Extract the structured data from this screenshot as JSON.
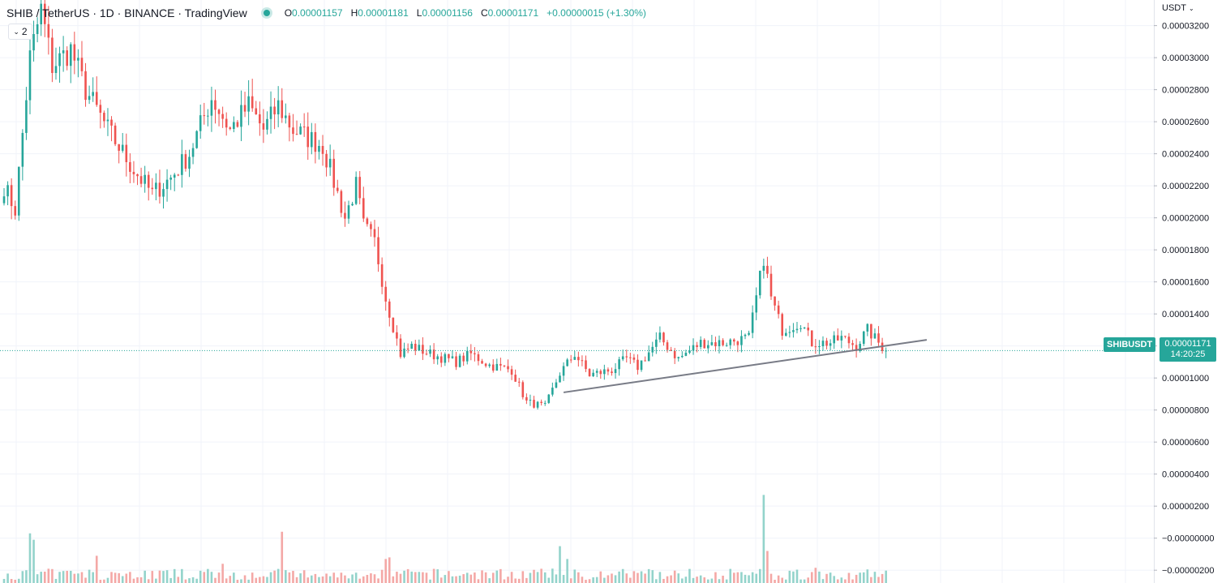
{
  "header": {
    "symbol": "SHIB / TetherUS · 1D · BINANCE · TradingView",
    "open_key": "O",
    "open": "0.00001157",
    "high_key": "H",
    "high": "0.00001181",
    "low_key": "L",
    "low": "0.00001156",
    "close_key": "C",
    "close": "0.00001171",
    "change": "+0.00000015 (+1.30%)",
    "collapse_count": "2"
  },
  "axis": {
    "currency": "USDT"
  },
  "price_tag": {
    "symbol": "SHIBUSDT",
    "price": "0.00001171",
    "countdown": "14:20:25"
  },
  "colors": {
    "up": "#26a69a",
    "down": "#ef5350",
    "up_vol": "#93d3cb",
    "down_vol": "#f4a8a6",
    "trendline": "#787b86",
    "grid": "#f0f3fa"
  },
  "chart_data": {
    "type": "candlestick",
    "symbol": "SHIB / TetherUS",
    "interval": "1D",
    "exchange": "BINANCE",
    "y_range": [
      -2.8e-06,
      3.36e-05
    ],
    "y_ticks": [
      "0.00003200",
      "0.00003000",
      "0.00002800",
      "0.00002600",
      "0.00002400",
      "0.00002200",
      "0.00002000",
      "0.00001800",
      "0.00001600",
      "0.00001400",
      "0.00001200",
      "0.00001000",
      "0.00000800",
      "0.00000600",
      "0.00000400",
      "0.00000200",
      "−0.00000000",
      "−0.00000200"
    ],
    "last_price": 1.171e-05,
    "close_anchors": [
      [
        0,
        2.2e-05
      ],
      [
        3,
        2.05e-05
      ],
      [
        7,
        3e-05
      ],
      [
        10,
        3.3e-05
      ],
      [
        13,
        2.95e-05
      ],
      [
        18,
        3.05e-05
      ],
      [
        22,
        2.8e-05
      ],
      [
        28,
        2.55e-05
      ],
      [
        35,
        2.3e-05
      ],
      [
        40,
        2.15e-05
      ],
      [
        45,
        2.25e-05
      ],
      [
        50,
        2.4e-05
      ],
      [
        56,
        2.75e-05
      ],
      [
        61,
        2.55e-05
      ],
      [
        66,
        2.7e-05
      ],
      [
        70,
        2.55e-05
      ],
      [
        74,
        2.7e-05
      ],
      [
        78,
        2.55e-05
      ],
      [
        86,
        2.45e-05
      ],
      [
        90,
        2.15e-05
      ],
      [
        92,
        2e-05
      ],
      [
        95,
        2.2e-05
      ],
      [
        97,
        1.95e-05
      ],
      [
        100,
        1.85e-05
      ],
      [
        103,
        1.5e-05
      ],
      [
        107,
        1.15e-05
      ],
      [
        110,
        1.2e-05
      ],
      [
        115,
        1.15e-05
      ],
      [
        122,
        1.1e-05
      ],
      [
        126,
        1.15e-05
      ],
      [
        131,
        1.08e-05
      ],
      [
        137,
        1.05e-05
      ],
      [
        141,
        8.5e-06
      ],
      [
        146,
        8.2e-06
      ],
      [
        150,
        1.03e-05
      ],
      [
        154,
        1.15e-05
      ],
      [
        158,
        1.02e-05
      ],
      [
        164,
        1.05e-05
      ],
      [
        168,
        1.12e-05
      ],
      [
        171,
        1.07e-05
      ],
      [
        177,
        1.25e-05
      ],
      [
        182,
        1.12e-05
      ],
      [
        188,
        1.22e-05
      ],
      [
        194,
        1.22e-05
      ],
      [
        201,
        1.25e-05
      ],
      [
        205,
        1.75e-05
      ],
      [
        207,
        1.5e-05
      ],
      [
        210,
        1.3e-05
      ],
      [
        215,
        1.35e-05
      ],
      [
        218,
        1.22e-05
      ],
      [
        223,
        1.22e-05
      ],
      [
        226,
        1.25e-05
      ],
      [
        230,
        1.2e-05
      ],
      [
        233,
        1.3e-05
      ],
      [
        236,
        1.22e-05
      ],
      [
        238,
        1.171e-05
      ]
    ],
    "volume_spikes": [
      [
        7,
        3.1e-06
      ],
      [
        8,
        2.7e-06
      ],
      [
        25,
        1.7e-06
      ],
      [
        59,
        1.2e-06
      ],
      [
        75,
        3.2e-06
      ],
      [
        103,
        1.5e-06
      ],
      [
        104,
        1.6e-06
      ],
      [
        150,
        2.3e-06
      ],
      [
        152,
        1.5e-06
      ],
      [
        205,
        5.5e-06
      ],
      [
        206,
        2e-06
      ],
      [
        219,
        9.5e-07
      ],
      [
        235,
        7e-07
      ]
    ],
    "trendline": {
      "start": [
        151,
        9.1e-06
      ],
      "end": [
        249,
        1.238e-05
      ]
    }
  }
}
